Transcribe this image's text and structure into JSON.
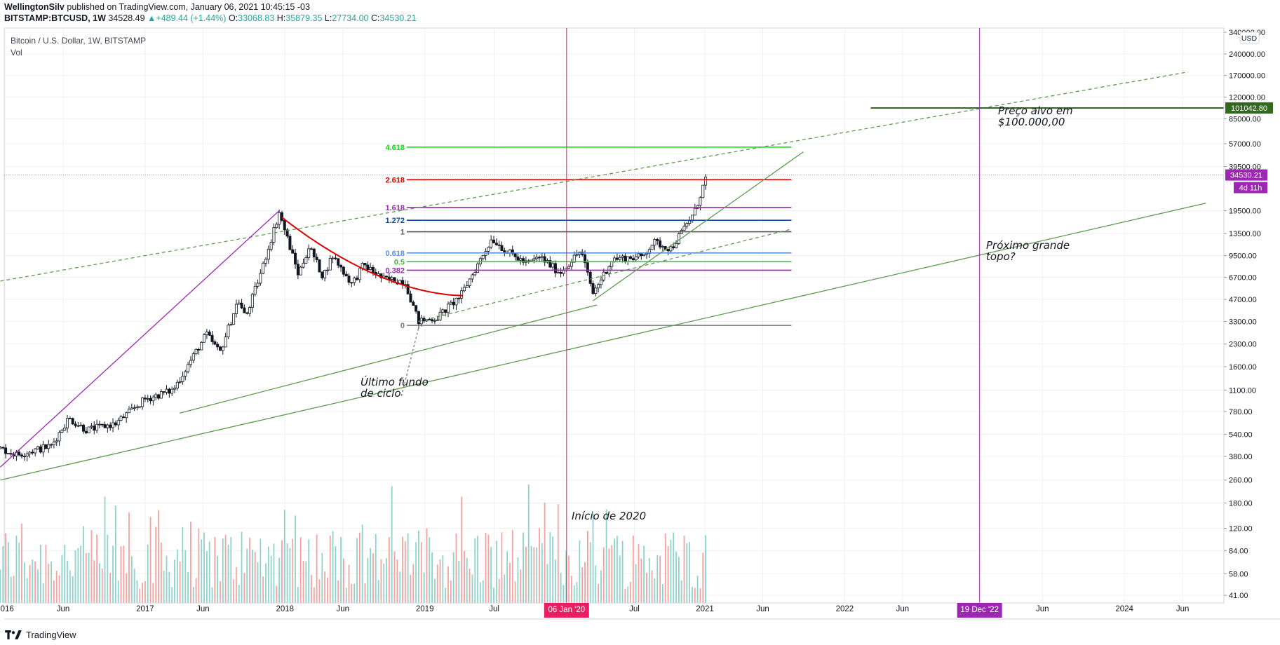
{
  "header": {
    "author": "WellingtonSilv",
    "published_text": "published on TradingView.com, January 06, 2021 10:45:15 -03",
    "symbol": "BITSTAMP:BTCUSD, 1W",
    "last": "34528.49",
    "change": "+489.44 (+1.44%)",
    "o_label": "O:",
    "o": "33068.83",
    "h_label": "H:",
    "h": "35879.35",
    "l_label": "L:",
    "l": "27734.00",
    "c_label": "C:",
    "c": "34530.21"
  },
  "legend": {
    "title": "Bitcoin / U.S. Dollar, 1W, BITSTAMP",
    "vol": "Vol"
  },
  "footer": {
    "brand": "TradingView"
  },
  "colors": {
    "up": "#26a69a",
    "down": "#ef5350",
    "grid": "#eef0f3",
    "fib_4618": "#00e600",
    "fib_2618": "#e00000",
    "fib_1618": "#9c27b0",
    "fib_1272": "#0d47a1",
    "fib_1": "#555555",
    "fib_0618": "#5b8fd8",
    "fib_05": "#4caf50",
    "fib_0382": "#9c27b0",
    "fib_0": "#777777",
    "trend": "#5d9b4e",
    "red_curve": "#e00000",
    "purple": "#9c27b0",
    "jan20_line": "#c2185b",
    "price_tag": "#9c27b0",
    "target_tag": "#33691e"
  },
  "chart_data": {
    "type": "candlestick",
    "scale": "log",
    "currency": "USD",
    "y_range": [
      30,
      340000
    ],
    "x_range": [
      "2015-12-20",
      "2024-09-15"
    ],
    "x_ticks": [
      {
        "date": "2016-01-01",
        "label": "2016"
      },
      {
        "date": "2016-06-01",
        "label": "Jun"
      },
      {
        "date": "2017-01-01",
        "label": "2017"
      },
      {
        "date": "2017-06-01",
        "label": "Jun"
      },
      {
        "date": "2018-01-01",
        "label": "2018"
      },
      {
        "date": "2018-06-01",
        "label": "Jun"
      },
      {
        "date": "2019-01-01",
        "label": "2019"
      },
      {
        "date": "2019-07-01",
        "label": "Jul"
      },
      {
        "date": "2020-07-01",
        "label": "Jul"
      },
      {
        "date": "2021-01-01",
        "label": "2021"
      },
      {
        "date": "2021-06-01",
        "label": "Jun"
      },
      {
        "date": "2022-01-01",
        "label": "2022"
      },
      {
        "date": "2022-06-01",
        "label": "Jun"
      },
      {
        "date": "2023-06-01",
        "label": "Jun"
      },
      {
        "date": "2024-01-01",
        "label": "2024"
      },
      {
        "date": "2024-06-01",
        "label": "Jun"
      }
    ],
    "x_markers": [
      {
        "date": "2020-01-06",
        "label": "06 Jan '20",
        "color": "#e91e63"
      },
      {
        "date": "2022-12-19",
        "label": "19 Dec '22",
        "color": "#9c27b0"
      }
    ],
    "y_ticks": [
      340000,
      240000,
      170000,
      120000,
      85000,
      57000,
      39500,
      19500,
      13500,
      9500,
      6700,
      4700,
      3300,
      2300,
      1600,
      1100,
      780,
      540,
      380,
      260,
      180,
      120,
      84,
      58,
      41
    ],
    "y_tick_labels": [
      "340000.00",
      "240000.00",
      "170000.00",
      "120000.00",
      "85000.00",
      "57000.00",
      "39500.00",
      "19500.00",
      "13500.00",
      "9500.00",
      "6700.00",
      "4700.00",
      "3300.00",
      "2300.00",
      "1600.00",
      "1100.00",
      "780.00",
      "540.00",
      "380.00",
      "260.00",
      "180.00",
      "120.00",
      "84.00",
      "58.00",
      "41.00"
    ],
    "y_axis_unit": "USD",
    "last_price": {
      "value": 34530.21,
      "label": "34530.21",
      "countdown": "4d 11h"
    },
    "target_price": {
      "value": 101042.8,
      "label": "101042.80"
    },
    "price_path": [
      {
        "date": "2015-12-20",
        "price": 430
      },
      {
        "date": "2016-02-01",
        "price": 390
      },
      {
        "date": "2016-05-01",
        "price": 450
      },
      {
        "date": "2016-06-15",
        "price": 700
      },
      {
        "date": "2016-08-01",
        "price": 580
      },
      {
        "date": "2016-10-15",
        "price": 640
      },
      {
        "date": "2017-01-01",
        "price": 950
      },
      {
        "date": "2017-03-15",
        "price": 1100
      },
      {
        "date": "2017-06-10",
        "price": 2700
      },
      {
        "date": "2017-07-15",
        "price": 2000
      },
      {
        "date": "2017-09-01",
        "price": 4700
      },
      {
        "date": "2017-09-20",
        "price": 3500
      },
      {
        "date": "2017-11-01",
        "price": 7500
      },
      {
        "date": "2017-12-17",
        "price": 19000
      },
      {
        "date": "2018-02-05",
        "price": 7000
      },
      {
        "date": "2018-03-05",
        "price": 11000
      },
      {
        "date": "2018-04-10",
        "price": 6800
      },
      {
        "date": "2018-05-05",
        "price": 9500
      },
      {
        "date": "2018-06-25",
        "price": 6000
      },
      {
        "date": "2018-07-25",
        "price": 8200
      },
      {
        "date": "2018-09-15",
        "price": 6500
      },
      {
        "date": "2018-11-10",
        "price": 6300
      },
      {
        "date": "2018-12-15",
        "price": 3300
      },
      {
        "date": "2019-02-01",
        "price": 3500
      },
      {
        "date": "2019-04-05",
        "price": 5000
      },
      {
        "date": "2019-06-25",
        "price": 12500
      },
      {
        "date": "2019-08-01",
        "price": 10200
      },
      {
        "date": "2019-09-25",
        "price": 8300
      },
      {
        "date": "2019-10-28",
        "price": 9300
      },
      {
        "date": "2019-12-20",
        "price": 7200
      },
      {
        "date": "2020-02-12",
        "price": 10300
      },
      {
        "date": "2020-03-15",
        "price": 5200
      },
      {
        "date": "2020-05-05",
        "price": 9000
      },
      {
        "date": "2020-07-20",
        "price": 9300
      },
      {
        "date": "2020-08-20",
        "price": 11800
      },
      {
        "date": "2020-10-05",
        "price": 10600
      },
      {
        "date": "2020-11-01",
        "price": 13800
      },
      {
        "date": "2020-12-05",
        "price": 19000
      },
      {
        "date": "2021-01-06",
        "price": 34530
      }
    ],
    "fib_levels": [
      {
        "ratio": "4.618",
        "price": 54000,
        "color": "#00e600"
      },
      {
        "ratio": "2.618",
        "price": 32000,
        "color": "#e00000"
      },
      {
        "ratio": "1.618",
        "price": 20500,
        "color": "#9c27b0"
      },
      {
        "ratio": "1.272",
        "price": 16700,
        "color": "#0d47a1"
      },
      {
        "ratio": "1",
        "price": 13900,
        "color": "#555555"
      },
      {
        "ratio": "0.618",
        "price": 9900,
        "color": "#5b8fd8"
      },
      {
        "ratio": "0.5",
        "price": 8600,
        "color": "#4caf50"
      },
      {
        "ratio": "0.382",
        "price": 7500,
        "color": "#9c27b0"
      },
      {
        "ratio": "0",
        "price": 3100,
        "color": "#777777"
      }
    ],
    "fib_range": [
      "2018-11-15",
      "2021-08-15"
    ],
    "annotations": [
      {
        "text": "Preço alvo em\n$100.000,00"
      },
      {
        "text": "Próximo grande\ntopo?"
      },
      {
        "text": "Último fundo\nde ciclo"
      },
      {
        "text": "Início de 2020"
      }
    ]
  }
}
